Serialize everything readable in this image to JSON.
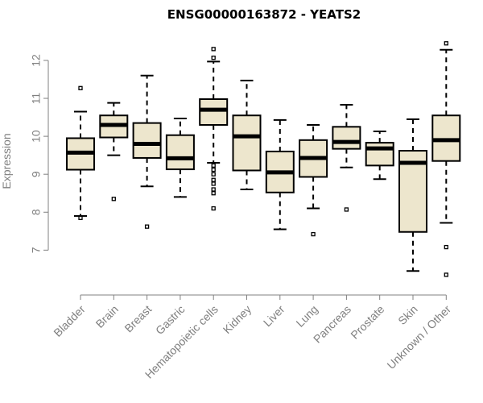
{
  "chart_data": {
    "type": "boxplot",
    "title": "ENSG00000163872 - YEATS2",
    "ylabel": "Expression",
    "xlabel": "",
    "ylim": [
      6.2,
      12.7
    ],
    "yticks": [
      7,
      8,
      9,
      10,
      11,
      12
    ],
    "box_fill": "#ede6cd",
    "median_color": "#000000",
    "axis_color": "#808080",
    "grid": false,
    "categories": [
      "Bladder",
      "Brain",
      "Breast",
      "Gastric",
      "Hematopoietic cells",
      "Kidney",
      "Liver",
      "Lung",
      "Pancreas",
      "Prostate",
      "Skin",
      "Unknown / Other"
    ],
    "boxes": [
      {
        "whisker_low": 7.9,
        "q1": 9.12,
        "median": 9.57,
        "q3": 9.95,
        "whisker_high": 10.65,
        "outliers": [
          11.27,
          7.85
        ]
      },
      {
        "whisker_low": 9.5,
        "q1": 9.97,
        "median": 10.3,
        "q3": 10.55,
        "whisker_high": 10.88,
        "outliers": [
          8.35
        ]
      },
      {
        "whisker_low": 8.68,
        "q1": 9.43,
        "median": 9.8,
        "q3": 10.35,
        "whisker_high": 11.6,
        "outliers": [
          7.62
        ]
      },
      {
        "whisker_low": 8.4,
        "q1": 9.13,
        "median": 9.42,
        "q3": 10.03,
        "whisker_high": 10.47,
        "outliers": []
      },
      {
        "whisker_low": 9.3,
        "q1": 10.3,
        "median": 10.7,
        "q3": 10.98,
        "whisker_high": 11.97,
        "outliers": [
          12.3,
          12.07,
          9.23,
          9.12,
          9.0,
          8.85,
          8.75,
          8.6,
          8.5,
          8.1
        ]
      },
      {
        "whisker_low": 8.6,
        "q1": 9.1,
        "median": 10.0,
        "q3": 10.55,
        "whisker_high": 11.47,
        "outliers": []
      },
      {
        "whisker_low": 7.55,
        "q1": 8.52,
        "median": 9.05,
        "q3": 9.6,
        "whisker_high": 10.43,
        "outliers": []
      },
      {
        "whisker_low": 8.1,
        "q1": 8.93,
        "median": 9.43,
        "q3": 9.9,
        "whisker_high": 10.3,
        "outliers": [
          7.42
        ]
      },
      {
        "whisker_low": 9.18,
        "q1": 9.67,
        "median": 9.85,
        "q3": 10.25,
        "whisker_high": 10.83,
        "outliers": [
          8.07
        ]
      },
      {
        "whisker_low": 8.87,
        "q1": 9.23,
        "median": 9.68,
        "q3": 9.83,
        "whisker_high": 10.13,
        "outliers": []
      },
      {
        "whisker_low": 6.45,
        "q1": 7.48,
        "median": 9.3,
        "q3": 9.62,
        "whisker_high": 10.45,
        "outliers": []
      },
      {
        "whisker_low": 7.72,
        "q1": 9.35,
        "median": 9.9,
        "q3": 10.55,
        "whisker_high": 12.28,
        "outliers": [
          12.45,
          7.08,
          6.35
        ]
      }
    ]
  }
}
